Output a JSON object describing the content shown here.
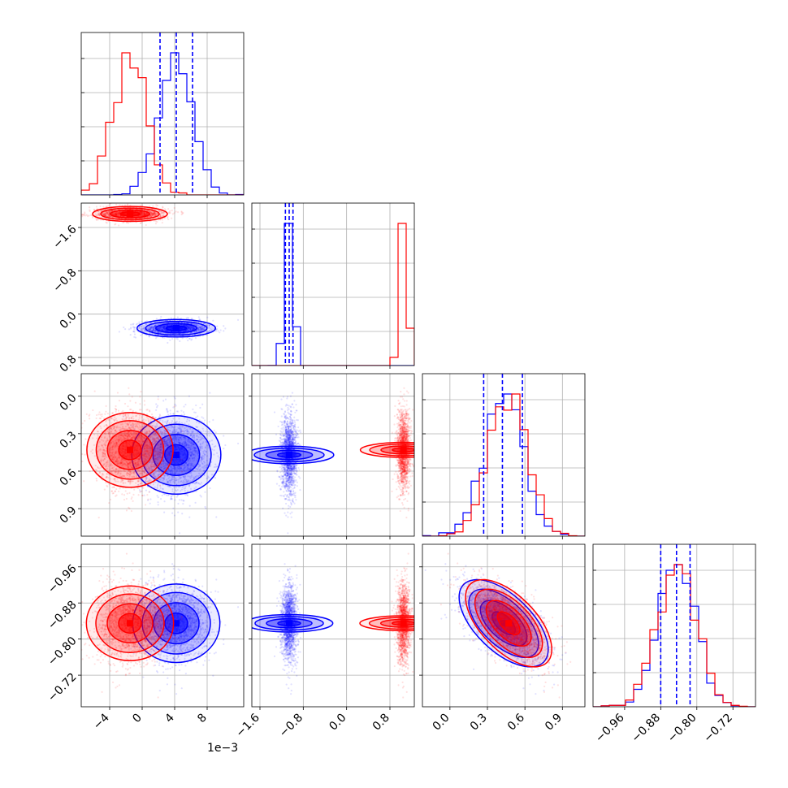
{
  "chart_data": {
    "type": "corner",
    "grid": true,
    "legend": "none",
    "parameters": 4,
    "x_tick_labels": [
      [
        "−4",
        "0",
        "4",
        "8"
      ],
      [
        "−1.6",
        "−0.8",
        "0.0",
        "0.8"
      ],
      [
        "0.0",
        "0.3",
        "0.6",
        "0.9"
      ],
      [
        "−0.96",
        "−0.88",
        "−0.80",
        "−0.72"
      ]
    ],
    "y_tick_labels": [
      [],
      [
        "0.8",
        "0.0",
        "−0.8",
        "−1.6"
      ],
      [
        "0.9",
        "0.6",
        "0.3",
        "0.0"
      ],
      [
        "−0.72",
        "−0.80",
        "−0.88",
        "−0.96"
      ]
    ],
    "x_offset_label": "1e−3",
    "param_ranges": [
      [
        -0.0075,
        0.0125
      ],
      [
        -1.75,
        1.25
      ],
      [
        -0.22,
        1.08
      ],
      [
        -1.03,
        -0.67
      ]
    ],
    "tick_values": [
      [
        -0.004,
        0,
        0.004,
        0.008
      ],
      [
        -1.6,
        -0.8,
        0.0,
        0.8
      ],
      [
        0.0,
        0.3,
        0.6,
        0.9
      ],
      [
        -0.96,
        -0.88,
        -0.8,
        -0.72
      ]
    ],
    "series": [
      {
        "color": "#0000ff",
        "mean": [
          0.0042,
          -1.06,
          0.43,
          -0.845
        ],
        "std": [
          0.0021,
          0.07,
          0.155,
          0.042
        ],
        "correlation_2_3": -0.6,
        "quantiles": [
          [
            0.0022,
            0.0042,
            0.0062
          ],
          [
            -1.13,
            -1.06,
            -0.99
          ],
          [
            0.27,
            0.42,
            0.58
          ],
          [
            -0.88,
            -0.845,
            -0.815
          ]
        ]
      },
      {
        "color": "#ff0000",
        "mean": [
          -0.0015,
          1.05,
          0.47,
          -0.845
        ],
        "std": [
          0.002,
          0.06,
          0.15,
          0.042
        ],
        "correlation_2_3": -0.6
      }
    ]
  }
}
